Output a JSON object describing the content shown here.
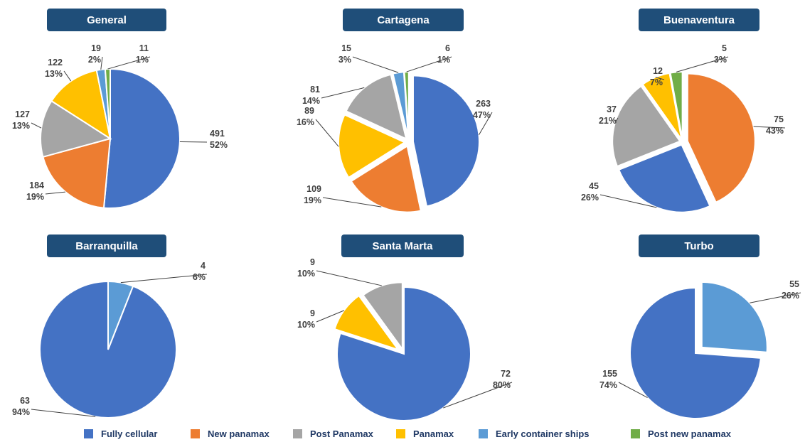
{
  "colors": {
    "Fully cellular": "#4472c4",
    "New panamax": "#ed7d31",
    "Post Panamax": "#a5a5a5",
    "Panamax": "#ffc000",
    "Early container ships": "#5b9bd5",
    "Post new panamax": "#70ad47"
  },
  "legend": [
    "Fully cellular",
    "New panamax",
    "Post Panamax",
    "Panamax",
    "Early container ships",
    "Post new panamax"
  ],
  "chart_data": [
    {
      "type": "pie",
      "title": "General",
      "slices": [
        {
          "category": "Fully cellular",
          "value": 491,
          "percent": "52%"
        },
        {
          "category": "New panamax",
          "value": 184,
          "percent": "19%"
        },
        {
          "category": "Post Panamax",
          "value": 127,
          "percent": "13%"
        },
        {
          "category": "Panamax",
          "value": 122,
          "percent": "13%"
        },
        {
          "category": "Early container ships",
          "value": 19,
          "percent": "2%"
        },
        {
          "category": "Post new panamax",
          "value": 11,
          "percent": "1%"
        }
      ]
    },
    {
      "type": "pie",
      "title": "Cartagena",
      "slices": [
        {
          "category": "Fully cellular",
          "value": 263,
          "percent": "47%"
        },
        {
          "category": "New panamax",
          "value": 109,
          "percent": "19%"
        },
        {
          "category": "Panamax",
          "value": 89,
          "percent": "16%"
        },
        {
          "category": "Post Panamax",
          "value": 81,
          "percent": "14%"
        },
        {
          "category": "Early container ships",
          "value": 15,
          "percent": "3%"
        },
        {
          "category": "Post new panamax",
          "value": 6,
          "percent": "1%"
        }
      ]
    },
    {
      "type": "pie",
      "title": "Buenaventura",
      "slices": [
        {
          "category": "New panamax",
          "value": 75,
          "percent": "43%"
        },
        {
          "category": "Fully cellular",
          "value": 45,
          "percent": "26%"
        },
        {
          "category": "Post Panamax",
          "value": 37,
          "percent": "21%"
        },
        {
          "category": "Panamax",
          "value": 12,
          "percent": "7%"
        },
        {
          "category": "Post new panamax",
          "value": 5,
          "percent": "3%"
        }
      ]
    },
    {
      "type": "pie",
      "title": "Barranquilla",
      "slices": [
        {
          "category": "Early container ships",
          "value": 4,
          "percent": "6%"
        },
        {
          "category": "Fully cellular",
          "value": 63,
          "percent": "94%"
        }
      ]
    },
    {
      "type": "pie",
      "title": "Santa Marta",
      "slices": [
        {
          "category": "Fully cellular",
          "value": 72,
          "percent": "80%"
        },
        {
          "category": "Panamax",
          "value": 9,
          "percent": "10%"
        },
        {
          "category": "Post Panamax",
          "value": 9,
          "percent": "10%"
        }
      ]
    },
    {
      "type": "pie",
      "title": "Turbo",
      "slices": [
        {
          "category": "Early container ships",
          "value": 55,
          "percent": "26%"
        },
        {
          "category": "Fully cellular",
          "value": 155,
          "percent": "74%"
        }
      ]
    }
  ]
}
